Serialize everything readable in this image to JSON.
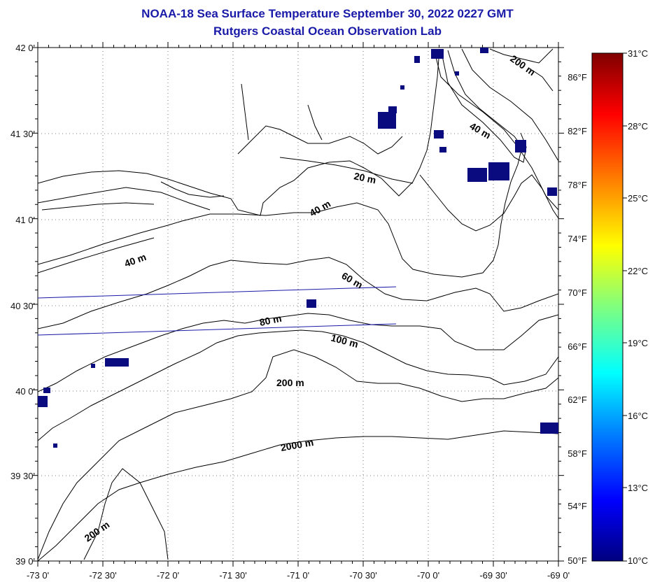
{
  "title": {
    "line1": "NOAA-18 Sea Surface Temperature September 30, 2022 0227 GMT",
    "line2": "Rutgers Coastal Ocean Observation Lab"
  },
  "map": {
    "lat_labels": [
      "42 0'",
      "41 30'",
      "41 0'",
      "40 30'",
      "40 0'",
      "39 30'",
      "39 0'"
    ],
    "lon_labels": [
      "-73 0'",
      "-72 30'",
      "-72 0'",
      "-71 30'",
      "-71 0'",
      "-70 30'",
      "-70 0'",
      "-69 30'",
      "-69 0'"
    ],
    "contour_labels": [
      "20 m",
      "40 m",
      "40 m",
      "40 m",
      "60 m",
      "80 m",
      "100 m",
      "200 m",
      "200 m",
      "200 m",
      "2000 m"
    ],
    "lat_range": [
      39.0,
      42.0
    ],
    "lon_range": [
      -73.0,
      -69.0
    ],
    "grid": true,
    "colors": {
      "ink": "#000000",
      "track": "#1a1aa8",
      "cloud": "#0b0b80",
      "land": "#ffffff",
      "title": "#1a1aa8"
    }
  },
  "colorbar": {
    "celsius": [
      "31°C",
      "28°C",
      "25°C",
      "22°C",
      "19°C",
      "16°C",
      "13°C",
      "10°C"
    ],
    "fahrenheit": [
      "86°F",
      "82°F",
      "78°F",
      "74°F",
      "70°F",
      "66°F",
      "62°F",
      "58°F",
      "54°F",
      "50°F"
    ],
    "range_c": [
      10,
      31
    ],
    "colors": [
      "#00007f",
      "#0000ff",
      "#007fff",
      "#00ffff",
      "#7fff7f",
      "#ffff00",
      "#ff7f00",
      "#ff0000",
      "#7f0000"
    ]
  }
}
